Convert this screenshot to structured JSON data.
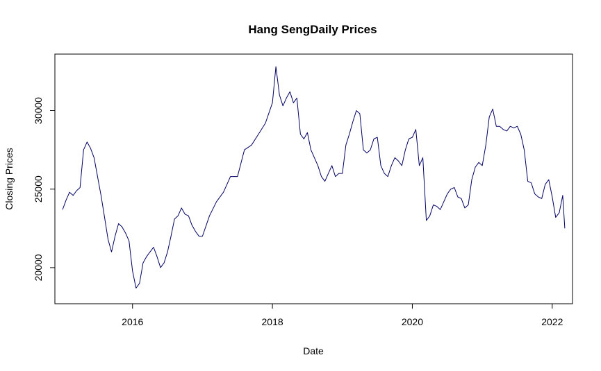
{
  "chart_data": {
    "type": "line",
    "title": "Hang SengDaily Prices",
    "xlabel": "Date",
    "ylabel": "Closing Prices",
    "xlim": [
      2014.89,
      2022.29
    ],
    "ylim": [
      17700,
      33600
    ],
    "grid": false,
    "legend": "none",
    "line_color": "#000066",
    "x_ticks": [
      {
        "value": 2016,
        "label": "2016"
      },
      {
        "value": 2018,
        "label": "2018"
      },
      {
        "value": 2020,
        "label": "2020"
      },
      {
        "value": 2022,
        "label": "2022"
      }
    ],
    "y_ticks": [
      {
        "value": 20000,
        "label": "20000"
      },
      {
        "value": 25000,
        "label": "25000"
      },
      {
        "value": 30000,
        "label": "30000"
      }
    ],
    "series": [
      {
        "x": [
          2015.0,
          2015.05,
          2015.1,
          2015.15,
          2015.2,
          2015.25,
          2015.3,
          2015.35,
          2015.4,
          2015.45,
          2015.5,
          2015.55,
          2015.6,
          2015.65,
          2015.7,
          2015.75,
          2015.8,
          2015.85,
          2015.9,
          2015.95,
          2016.0,
          2016.05,
          2016.1,
          2016.15,
          2016.2,
          2016.25,
          2016.3,
          2016.35,
          2016.4,
          2016.45,
          2016.5,
          2016.55,
          2016.6,
          2016.65,
          2016.7,
          2016.75,
          2016.8,
          2016.85,
          2016.9,
          2016.95,
          2017.0,
          2017.1,
          2017.2,
          2017.3,
          2017.4,
          2017.5,
          2017.6,
          2017.7,
          2017.8,
          2017.9,
          2018.0,
          2018.05,
          2018.1,
          2018.15,
          2018.2,
          2018.25,
          2018.3,
          2018.35,
          2018.4,
          2018.45,
          2018.5,
          2018.55,
          2018.6,
          2018.65,
          2018.7,
          2018.75,
          2018.8,
          2018.85,
          2018.9,
          2018.95,
          2019.0,
          2019.05,
          2019.1,
          2019.15,
          2019.2,
          2019.25,
          2019.3,
          2019.35,
          2019.4,
          2019.45,
          2019.5,
          2019.55,
          2019.6,
          2019.65,
          2019.7,
          2019.75,
          2019.8,
          2019.85,
          2019.9,
          2019.95,
          2020.0,
          2020.05,
          2020.1,
          2020.15,
          2020.2,
          2020.25,
          2020.3,
          2020.35,
          2020.4,
          2020.45,
          2020.5,
          2020.55,
          2020.6,
          2020.65,
          2020.7,
          2020.75,
          2020.8,
          2020.85,
          2020.9,
          2020.95,
          2021.0,
          2021.05,
          2021.1,
          2021.15,
          2021.2,
          2021.25,
          2021.3,
          2021.35,
          2021.4,
          2021.45,
          2021.5,
          2021.55,
          2021.6,
          2021.65,
          2021.7,
          2021.75,
          2021.8,
          2021.85,
          2021.9,
          2021.95,
          2022.0,
          2022.05,
          2022.1,
          2022.15,
          2022.18
        ],
        "y": [
          23700,
          24300,
          24800,
          24600,
          24900,
          25100,
          27500,
          28000,
          27600,
          27000,
          25800,
          24600,
          23200,
          21800,
          21000,
          22000,
          22800,
          22600,
          22200,
          21700,
          19800,
          18700,
          19000,
          20300,
          20700,
          21000,
          21300,
          20700,
          20000,
          20300,
          21000,
          22000,
          23100,
          23300,
          23800,
          23400,
          23300,
          22700,
          22300,
          22000,
          22000,
          23300,
          24200,
          24800,
          25800,
          25800,
          27500,
          27800,
          28500,
          29200,
          30500,
          32800,
          31000,
          30300,
          30800,
          31200,
          30500,
          30800,
          28500,
          28200,
          28600,
          27500,
          27000,
          26500,
          25800,
          25500,
          26000,
          26500,
          25800,
          26000,
          26000,
          27800,
          28500,
          29300,
          30000,
          29800,
          27500,
          27300,
          27500,
          28200,
          28300,
          26500,
          26000,
          25800,
          26500,
          27000,
          26800,
          26500,
          27500,
          28200,
          28300,
          28800,
          26500,
          27000,
          23000,
          23300,
          24000,
          23900,
          23700,
          24200,
          24700,
          25000,
          25100,
          24500,
          24400,
          23800,
          24000,
          25600,
          26400,
          26700,
          26500,
          27800,
          29600,
          30100,
          29000,
          29000,
          28800,
          28700,
          29000,
          28900,
          29000,
          28500,
          27500,
          25500,
          25400,
          24700,
          24500,
          24400,
          25300,
          25600,
          24500,
          23200,
          23500,
          24600,
          22500
        ]
      }
    ]
  }
}
